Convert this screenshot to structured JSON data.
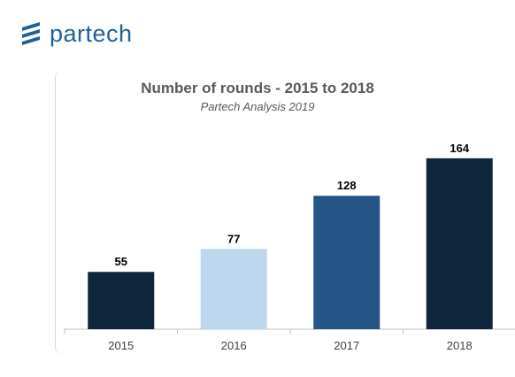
{
  "brand": {
    "name": "partech",
    "color": "#1f5f9a",
    "icon": "partech-logo-icon"
  },
  "chart_data": {
    "type": "bar",
    "title": "Number of rounds - 2015 to 2018",
    "subtitle": "Partech Analysis 2019",
    "categories": [
      "2015",
      "2016",
      "2017",
      "2018"
    ],
    "values": [
      55,
      77,
      128,
      164
    ],
    "colors": [
      "#10263c",
      "#bdd7ee",
      "#245586",
      "#10263c"
    ],
    "data_labels": [
      "55",
      "77",
      "128",
      "164"
    ],
    "ylim": [
      0,
      180
    ],
    "grid": false,
    "legend": "none"
  }
}
